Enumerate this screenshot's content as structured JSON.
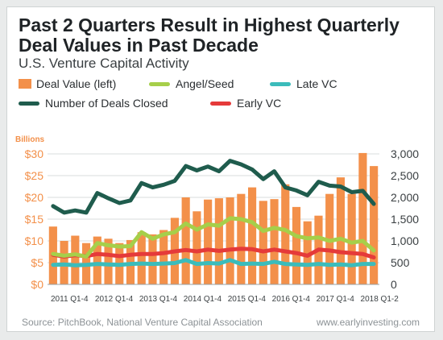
{
  "chart_data": {
    "type": "bar",
    "title": "Past 2 Quarters Result in Highest Quarterly Deal Values in Past Decade",
    "subtitle": "U.S. Venture Capital Activity",
    "left_axis_unit": "Billions",
    "left_ticks": [
      "$0",
      "$5",
      "$10",
      "$15",
      "$20",
      "$25",
      "$30"
    ],
    "right_ticks": [
      "0",
      "500",
      "1,000",
      "1,500",
      "2,000",
      "2,500",
      "3,000"
    ],
    "ylim_left": [
      0,
      30
    ],
    "ylim_right": [
      0,
      3000
    ],
    "x_labels": [
      {
        "year": "2011",
        "qtr": "Q1-4",
        "index": 0
      },
      {
        "year": "2012",
        "qtr": "Q1-4",
        "index": 4
      },
      {
        "year": "2013",
        "qtr": "Q1-4",
        "index": 8
      },
      {
        "year": "2014",
        "qtr": "Q1-4",
        "index": 12
      },
      {
        "year": "2015",
        "qtr": "Q1-4",
        "index": 16
      },
      {
        "year": "2016",
        "qtr": "Q1-4",
        "index": 20
      },
      {
        "year": "2017",
        "qtr": "Q1-4",
        "index": 24
      },
      {
        "year": "2018",
        "qtr": "Q1-2",
        "index": 28
      }
    ],
    "legend": [
      {
        "label": "Deal Value (left)",
        "kind": "box",
        "color": "#f3904a"
      },
      {
        "label": "Angel/Seed",
        "kind": "line",
        "color": "#a6cf4a"
      },
      {
        "label": "Late VC",
        "kind": "line",
        "color": "#3bbcbb"
      },
      {
        "label": "Number of Deals Closed",
        "kind": "line",
        "color": "#1f5c4d"
      },
      {
        "label": "Early VC",
        "kind": "line",
        "color": "#e53a3a"
      }
    ],
    "series": [
      {
        "name": "Deal Value (left)",
        "axis": "left",
        "kind": "bar",
        "color": "#f3904a",
        "values": [
          13.3,
          10.0,
          11.2,
          9.5,
          11.0,
          10.5,
          9.5,
          10.2,
          12.0,
          11.5,
          12.5,
          15.3,
          20.0,
          16.8,
          19.5,
          19.8,
          20.0,
          20.8,
          22.3,
          19.2,
          19.6,
          23.0,
          17.8,
          14.5,
          15.8,
          20.8,
          24.6,
          20.8,
          30.2,
          27.2
        ]
      },
      {
        "name": "Number of Deals Closed",
        "axis": "right",
        "kind": "line",
        "color": "#1f5c4d",
        "values": [
          1800,
          1650,
          1700,
          1650,
          2100,
          1980,
          1870,
          1930,
          2330,
          2230,
          2290,
          2380,
          2720,
          2620,
          2710,
          2600,
          2840,
          2760,
          2640,
          2420,
          2600,
          2230,
          2160,
          2050,
          2360,
          2270,
          2250,
          2120,
          2150,
          1850
        ]
      },
      {
        "name": "Angel/Seed",
        "axis": "right",
        "kind": "line",
        "color": "#a6cf4a",
        "values": [
          700,
          660,
          690,
          640,
          950,
          900,
          870,
          880,
          1200,
          1050,
          1150,
          1200,
          1400,
          1260,
          1380,
          1350,
          1520,
          1500,
          1430,
          1230,
          1300,
          1250,
          1110,
          1060,
          1080,
          1000,
          1050,
          960,
          1000,
          780
        ]
      },
      {
        "name": "Early VC",
        "axis": "right",
        "kind": "line",
        "color": "#e53a3a",
        "values": [
          680,
          640,
          670,
          650,
          700,
          680,
          650,
          680,
          700,
          700,
          720,
          760,
          790,
          760,
          800,
          770,
          800,
          820,
          810,
          760,
          800,
          760,
          720,
          660,
          800,
          780,
          740,
          720,
          700,
          620
        ]
      },
      {
        "name": "Late VC",
        "axis": "right",
        "kind": "line",
        "color": "#3bbcbb",
        "values": [
          450,
          460,
          440,
          450,
          470,
          460,
          450,
          470,
          480,
          470,
          480,
          490,
          560,
          470,
          490,
          480,
          560,
          470,
          480,
          470,
          520,
          470,
          460,
          450,
          470,
          450,
          460,
          440,
          470,
          470
        ]
      }
    ]
  },
  "footer": {
    "source": "Source: PitchBook, National Venture Capital Association",
    "site": "www.earlyinvesting.com"
  }
}
